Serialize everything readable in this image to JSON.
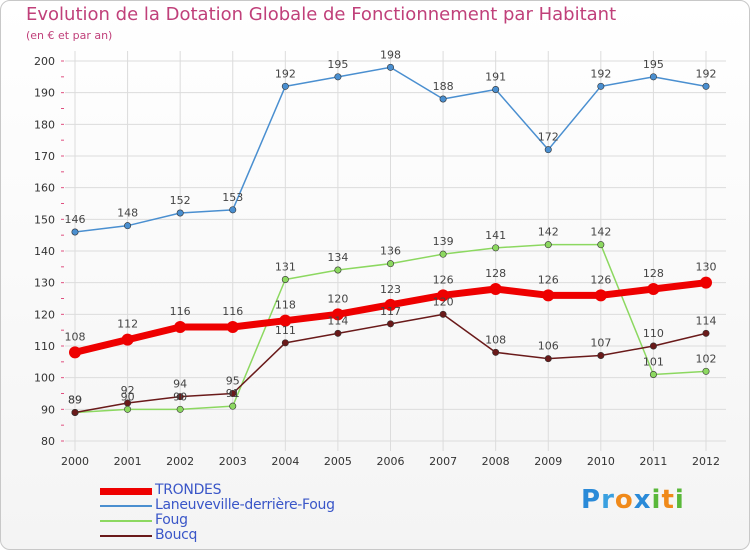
{
  "title": "Evolution de la Dotation Globale de Fonctionnement par Habitant",
  "subtitle": "(en € et par an)",
  "logo": {
    "text": "Proxiti",
    "letters": [
      {
        "ch": "P",
        "color": "#2a8ad8"
      },
      {
        "ch": "r",
        "color": "#3aa0e0"
      },
      {
        "ch": "o",
        "color": "#f08a1a"
      },
      {
        "ch": "x",
        "color": "#2a8ad8"
      },
      {
        "ch": "i",
        "color": "#5ab83a"
      },
      {
        "ch": "t",
        "color": "#f08a1a"
      },
      {
        "ch": "i",
        "color": "#5ab83a"
      }
    ]
  },
  "chart_data": {
    "type": "line",
    "x": [
      "2000",
      "2001",
      "2002",
      "2003",
      "2004",
      "2005",
      "2006",
      "2007",
      "2008",
      "2009",
      "2010",
      "2011",
      "2012"
    ],
    "ylim": [
      80,
      200
    ],
    "yticks": [
      80,
      90,
      100,
      110,
      120,
      130,
      140,
      150,
      160,
      170,
      180,
      190,
      200
    ],
    "grid": true,
    "legend_position": "bottom-left",
    "series": [
      {
        "name": "Laneuveville-derrière-Foug",
        "color": "#4a8fd0",
        "values": [
          146,
          148,
          152,
          153,
          192,
          195,
          198,
          188,
          191,
          172,
          192,
          195,
          192
        ]
      },
      {
        "name": "Foug",
        "color": "#8cd860",
        "values": [
          89,
          90,
          90,
          91,
          131,
          134,
          136,
          139,
          141,
          142,
          142,
          101,
          102
        ]
      },
      {
        "name": "Boucq",
        "color": "#6a1a1a",
        "values": [
          89,
          92,
          94,
          95,
          111,
          114,
          117,
          120,
          108,
          106,
          107,
          110,
          114
        ]
      },
      {
        "name": "TRONDES",
        "color": "#ee0000",
        "values": [
          108,
          112,
          116,
          116,
          118,
          120,
          123,
          126,
          128,
          126,
          126,
          128,
          130
        ]
      }
    ],
    "legend_order": [
      "TRONDES",
      "Laneuveville-derrière-Foug",
      "Foug",
      "Boucq"
    ]
  }
}
